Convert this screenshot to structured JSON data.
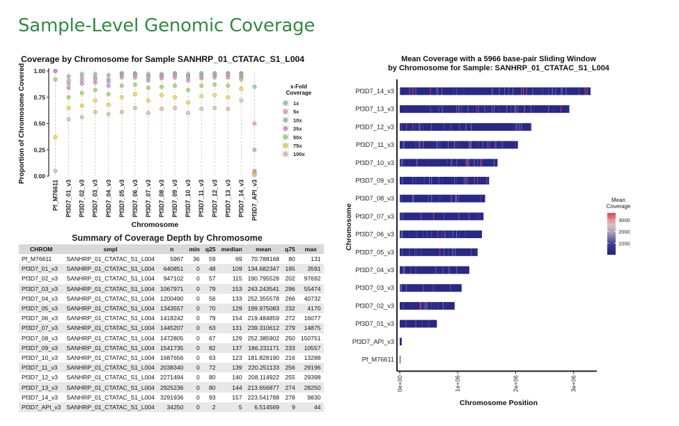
{
  "page": {
    "title": "Sample-Level Genomic Coverage"
  },
  "chart_data": [
    {
      "type": "scatter",
      "title": "Coverage by Chromosome for Sample SANHRP_01_CTATAC_S1_L004",
      "xlabel": "Chromosome",
      "ylabel": "Proportion of Chromosome Covered",
      "ylim": [
        0,
        1
      ],
      "yticks": [
        "0.00",
        "0.25",
        "0.50",
        "0.75",
        "1.00"
      ],
      "categories": [
        "Pf_M76611",
        "Pf3D7_01_v3",
        "Pf3D7_02_v3",
        "Pf3D7_03_v3",
        "Pf3D7_04_v3",
        "Pf3D7_05_v3",
        "Pf3D7_06_v3",
        "Pf3D7_07_v3",
        "Pf3D7_08_v3",
        "Pf3D7_09_v3",
        "Pf3D7_10_v3",
        "Pf3D7_11_v3",
        "Pf3D7_12_v3",
        "Pf3D7_13_v3",
        "Pf3D7_14_v3",
        "Pf3D7_API_v3"
      ],
      "legend_title": "x-Fold\nCoverage",
      "legend_position": "right",
      "series": [
        {
          "name": "1x",
          "color": "#7fcdbb",
          "values": [
            1.0,
            0.95,
            0.97,
            0.97,
            0.96,
            0.98,
            0.98,
            0.97,
            0.97,
            0.98,
            0.97,
            0.98,
            0.98,
            0.98,
            0.98,
            0.85
          ]
        },
        {
          "name": "5x",
          "color": "#f4a582",
          "values": [
            1.0,
            0.91,
            0.94,
            0.94,
            0.92,
            0.97,
            0.97,
            0.95,
            0.96,
            0.97,
            0.95,
            0.96,
            0.97,
            0.97,
            0.97,
            0.5
          ]
        },
        {
          "name": "10x",
          "color": "#a6b4d8",
          "values": [
            1.0,
            0.88,
            0.91,
            0.92,
            0.9,
            0.96,
            0.96,
            0.94,
            0.95,
            0.96,
            0.94,
            0.95,
            0.96,
            0.96,
            0.96,
            0.25
          ]
        },
        {
          "name": "25x",
          "color": "#e78ac3",
          "values": [
            1.0,
            0.84,
            0.88,
            0.89,
            0.86,
            0.94,
            0.94,
            0.91,
            0.93,
            0.94,
            0.91,
            0.93,
            0.94,
            0.94,
            0.94,
            0.05
          ]
        },
        {
          "name": "50x",
          "color": "#a6d854",
          "values": [
            0.92,
            0.75,
            0.79,
            0.82,
            0.78,
            0.86,
            0.87,
            0.84,
            0.85,
            0.86,
            0.82,
            0.86,
            0.87,
            0.86,
            0.92,
            0.03
          ]
        },
        {
          "name": "75x",
          "color": "#ffd92f",
          "values": [
            0.37,
            0.65,
            0.67,
            0.72,
            0.68,
            0.75,
            0.78,
            0.72,
            0.77,
            0.75,
            0.7,
            0.76,
            0.77,
            0.75,
            0.83,
            0.02
          ]
        },
        {
          "name": "100x",
          "color": "#e5c494",
          "values": [
            0.05,
            0.54,
            0.56,
            0.61,
            0.59,
            0.61,
            0.65,
            0.6,
            0.64,
            0.65,
            0.6,
            0.64,
            0.65,
            0.64,
            0.72,
            0.01
          ]
        }
      ]
    },
    {
      "type": "table",
      "title": "Summary of Coverage Depth by Chromosome",
      "columns": [
        "CHROM",
        "smpl",
        "n",
        "min",
        "q25",
        "median",
        "mean",
        "q75",
        "max"
      ],
      "rows": [
        [
          "Pf_M76611",
          "SANHRP_01_CTATAC_S1_L004",
          "5967",
          "36",
          "59",
          "69",
          "70.788168",
          "80",
          "131"
        ],
        [
          "Pf3D7_01_v3",
          "SANHRP_01_CTATAC_S1_L004",
          "640851",
          "0",
          "48",
          "109",
          "134.682347",
          "185",
          "3591"
        ],
        [
          "Pf3D7_02_v3",
          "SANHRP_01_CTATAC_S1_L004",
          "947102",
          "0",
          "57",
          "115",
          "190.795528",
          "202",
          "97692"
        ],
        [
          "Pf3D7_03_v3",
          "SANHRP_01_CTATAC_S1_L004",
          "1067971",
          "0",
          "79",
          "153",
          "243.243541",
          "296",
          "55474"
        ],
        [
          "Pf3D7_04_v3",
          "SANHRP_01_CTATAC_S1_L004",
          "1200490",
          "0",
          "56",
          "133",
          "252.355578",
          "266",
          "40732"
        ],
        [
          "Pf3D7_05_v3",
          "SANHRP_01_CTATAC_S1_L004",
          "1343557",
          "0",
          "70",
          "129",
          "199.975083",
          "232",
          "4170"
        ],
        [
          "Pf3D7_06_v3",
          "SANHRP_01_CTATAC_S1_L004",
          "1418242",
          "0",
          "79",
          "154",
          "219.484859",
          "272",
          "16077"
        ],
        [
          "Pf3D7_07_v3",
          "SANHRP_01_CTATAC_S1_L004",
          "1445207",
          "0",
          "63",
          "131",
          "239.310612",
          "279",
          "14875"
        ],
        [
          "Pf3D7_08_v3",
          "SANHRP_01_CTATAC_S1_L004",
          "1472805",
          "0",
          "67",
          "129",
          "252.385902",
          "250",
          "150751"
        ],
        [
          "Pf3D7_09_v3",
          "SANHRP_01_CTATAC_S1_L004",
          "1541735",
          "0",
          "82",
          "137",
          "186.231171",
          "233",
          "10557"
        ],
        [
          "Pf3D7_10_v3",
          "SANHRP_01_CTATAC_S1_L004",
          "1687656",
          "0",
          "63",
          "123",
          "181.828190",
          "216",
          "13288"
        ],
        [
          "Pf3D7_11_v3",
          "SANHRP_01_CTATAC_S1_L004",
          "2038340",
          "0",
          "72",
          "139",
          "220.251133",
          "256",
          "29196"
        ],
        [
          "Pf3D7_12_v3",
          "SANHRP_01_CTATAC_S1_L004",
          "2271494",
          "0",
          "80",
          "140",
          "208.114922",
          "255",
          "29398"
        ],
        [
          "Pf3D7_13_v3",
          "SANHRP_01_CTATAC_S1_L004",
          "2925236",
          "0",
          "80",
          "144",
          "213.656877",
          "274",
          "28250"
        ],
        [
          "Pf3D7_14_v3",
          "SANHRP_01_CTATAC_S1_L004",
          "3291936",
          "0",
          "93",
          "157",
          "223.541788",
          "278",
          "9830"
        ],
        [
          "Pf3D7_API_v3",
          "SANHRP_01_CTATAC_S1_L004",
          "34250",
          "0",
          "2",
          "5",
          "6.514569",
          "9",
          "44"
        ]
      ]
    },
    {
      "type": "heatmap",
      "title_line1": "Mean Coverage with a  5966  base-pair Sliding Window",
      "title_line2": "by Chromosome for Sample: SANHRP_01_CTATAC_S1_L004",
      "xlabel": "Chromosome Position",
      "ylabel": "Chromosome",
      "xlim": [
        0,
        3400000
      ],
      "xticks": [
        {
          "value": 0,
          "label": "0e+00"
        },
        {
          "value": 1000000,
          "label": "1e+06"
        },
        {
          "value": 2000000,
          "label": "2e+06"
        },
        {
          "value": 3000000,
          "label": "3e+06"
        }
      ],
      "legend_title": "Mean\nCoverage",
      "legend_position": "right",
      "legend_ticks": [
        {
          "value": 1000,
          "label": "1000"
        },
        {
          "value": 2000,
          "label": "2000"
        },
        {
          "value": 3000,
          "label": "3000"
        }
      ],
      "color_range": [
        0,
        3600
      ],
      "rows": [
        {
          "name": "Pf3D7_14_v3",
          "length": 3291936
        },
        {
          "name": "Pf3D7_13_v3",
          "length": 2925236
        },
        {
          "name": "Pf3D7_12_v3",
          "length": 2271494
        },
        {
          "name": "Pf3D7_11_v3",
          "length": 2038340
        },
        {
          "name": "Pf3D7_10_v3",
          "length": 1687656
        },
        {
          "name": "Pf3D7_09_v3",
          "length": 1541735
        },
        {
          "name": "Pf3D7_08_v3",
          "length": 1472805
        },
        {
          "name": "Pf3D7_07_v3",
          "length": 1445207
        },
        {
          "name": "Pf3D7_06_v3",
          "length": 1418242
        },
        {
          "name": "Pf3D7_05_v3",
          "length": 1343557
        },
        {
          "name": "Pf3D7_04_v3",
          "length": 1200490
        },
        {
          "name": "Pf3D7_03_v3",
          "length": 1067971
        },
        {
          "name": "Pf3D7_02_v3",
          "length": 947102
        },
        {
          "name": "Pf3D7_01_v3",
          "length": 640851
        },
        {
          "name": "Pf3D7_API_v3",
          "length": 34250
        },
        {
          "name": "Pf_M76611",
          "length": 5967
        }
      ]
    }
  ]
}
